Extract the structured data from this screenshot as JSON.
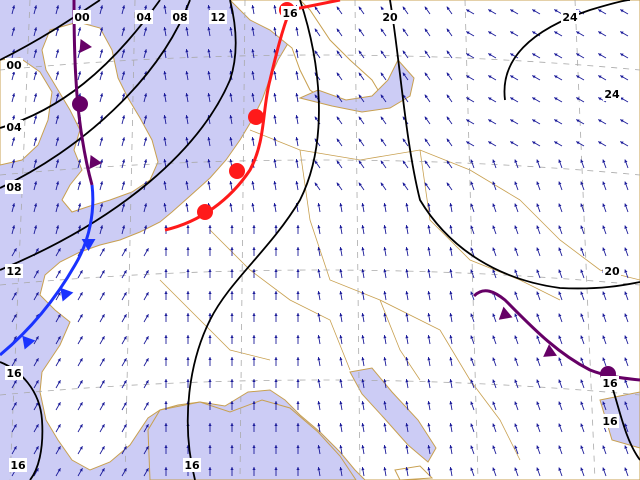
{
  "map": {
    "colors": {
      "sea": "#ccccf5",
      "land": "#ffffff",
      "coast": "#c8a050",
      "isobar": "#000000",
      "wind_arrow": "#1a1a99",
      "warm_front": "#ff1a1a",
      "cold_front": "#1a33ff",
      "occluded_front": "#660066",
      "grid": "#aaaaaa",
      "label_bg": "#ffffff"
    },
    "isobar_labels": [
      {
        "text": "00",
        "ref": "left-top-edge"
      },
      {
        "text": "04",
        "ref": "left-upper"
      },
      {
        "text": "08",
        "ref": "left-mid"
      },
      {
        "text": "12",
        "ref": "left-lower"
      },
      {
        "text": "16",
        "ref": "left-bottom"
      },
      {
        "text": "16",
        "ref": "bottom-left"
      },
      {
        "text": "00",
        "ref": "top"
      },
      {
        "text": "04",
        "ref": "top"
      },
      {
        "text": "08",
        "ref": "top"
      },
      {
        "text": "12",
        "ref": "top"
      },
      {
        "text": "16",
        "ref": "top"
      },
      {
        "text": "20",
        "ref": "top"
      },
      {
        "text": "24",
        "ref": "top-right"
      },
      {
        "text": "24",
        "ref": "right-upper"
      },
      {
        "text": "20",
        "ref": "right-lower"
      },
      {
        "text": "16",
        "ref": "bottom-center"
      },
      {
        "text": "16",
        "ref": "right-bottom"
      },
      {
        "text": "16",
        "ref": "right-bottom-edge"
      }
    ],
    "fronts": [
      {
        "kind": "warm",
        "symbol": "semicircle"
      },
      {
        "kind": "cold",
        "symbol": "triangle"
      },
      {
        "kind": "occluded",
        "symbol": "triangle-semicircle"
      },
      {
        "kind": "occluded",
        "symbol": "triangle-semicircle"
      }
    ]
  }
}
